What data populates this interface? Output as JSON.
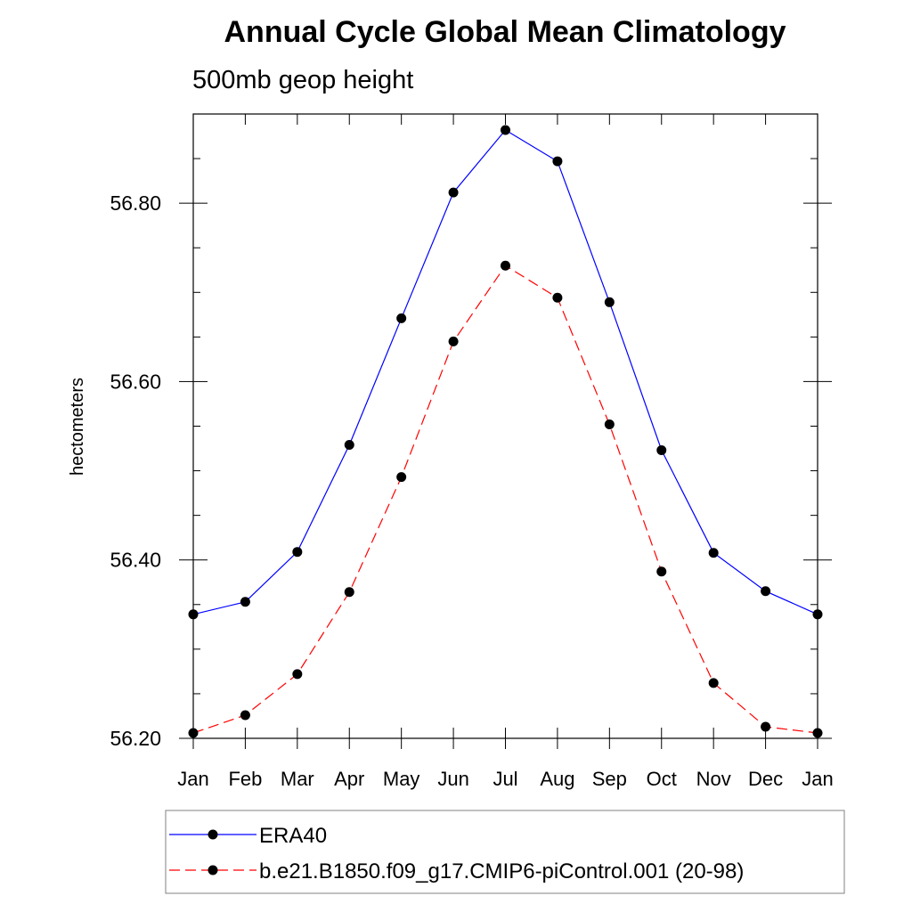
{
  "chart_data": {
    "type": "line",
    "title": "Annual Cycle Global Mean Climatology",
    "subtitle": "500mb geop height",
    "ylabel": "hectometers",
    "xlabel": "",
    "categories": [
      "Jan",
      "Feb",
      "Mar",
      "Apr",
      "May",
      "Jun",
      "Jul",
      "Aug",
      "Sep",
      "Oct",
      "Nov",
      "Dec",
      "Jan"
    ],
    "ylim": [
      56.2,
      56.9
    ],
    "y_ticks": [
      "56.20",
      "56.40",
      "56.60",
      "56.80"
    ],
    "grid": false,
    "legend_position": "bottom",
    "series": [
      {
        "name": "ERA40",
        "color": "#0000ff",
        "line_style": "solid",
        "marker": "filled-circle",
        "values": [
          56.339,
          56.353,
          56.409,
          56.529,
          56.671,
          56.812,
          56.882,
          56.847,
          56.689,
          56.523,
          56.408,
          56.365,
          56.339
        ]
      },
      {
        "name": "b.e21.B1850.f09_g17.CMIP6-piControl.001 (20-98)",
        "color": "#ff0000",
        "line_style": "dashed",
        "marker": "filled-circle",
        "values": [
          56.206,
          56.226,
          56.272,
          56.364,
          56.493,
          56.645,
          56.73,
          56.694,
          56.552,
          56.387,
          56.262,
          56.213,
          56.206
        ]
      }
    ]
  }
}
